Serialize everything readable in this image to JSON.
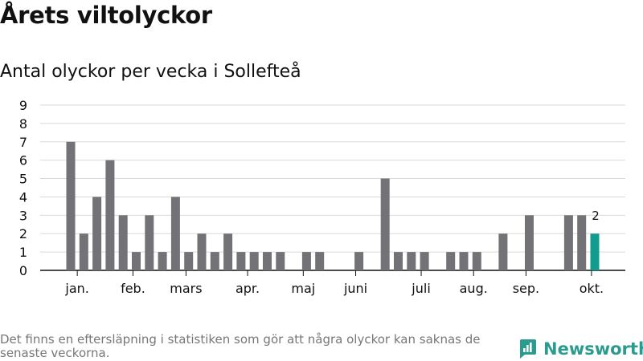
{
  "title": "Årets viltolyckor",
  "subtitle": "Antal olyckor per vecka i Sollefteå",
  "footnote": "Det finns en eftersläpning i statistiken som gör att några olyckor kan saknas de senaste veckorna.",
  "brand": {
    "name": "Newsworthy",
    "icon": "newsworthy-logo-icon",
    "color": "#2b9b8f"
  },
  "colors": {
    "bar": "#737276",
    "highlight": "#119c8f",
    "grid": "#d9d9d9",
    "axis": "#111111"
  },
  "chart_data": {
    "type": "bar",
    "title": "Årets viltolyckor",
    "subtitle": "Antal olyckor per vecka i Sollefteå",
    "x_unit": "week",
    "weeks": [
      1,
      2,
      3,
      4,
      5,
      6,
      7,
      8,
      9,
      10,
      11,
      12,
      13,
      14,
      15,
      16,
      17,
      18,
      19,
      20,
      21,
      22,
      23,
      24,
      25,
      26,
      27,
      28,
      29,
      30,
      31,
      32,
      33,
      34,
      35,
      36,
      37,
      38,
      39,
      40,
      41,
      42
    ],
    "values": [
      7,
      2,
      4,
      6,
      3,
      1,
      3,
      1,
      4,
      1,
      2,
      1,
      2,
      1,
      1,
      1,
      1,
      0,
      1,
      1,
      0,
      0,
      1,
      0,
      5,
      1,
      1,
      1,
      0,
      1,
      1,
      1,
      0,
      2,
      0,
      3,
      0,
      0,
      3,
      3,
      2,
      null
    ],
    "highlight_week": 41,
    "highlight_label": "2",
    "y_ticks": [
      0,
      1,
      2,
      3,
      4,
      5,
      6,
      7,
      8,
      9
    ],
    "ylim": [
      0,
      9
    ],
    "month_labels": [
      {
        "label": "jan.",
        "week": 1.5
      },
      {
        "label": "feb.",
        "week": 5.75
      },
      {
        "label": "mars",
        "week": 9.8
      },
      {
        "label": "apr.",
        "week": 14.5
      },
      {
        "label": "maj",
        "week": 18.75
      },
      {
        "label": "juni",
        "week": 22.75
      },
      {
        "label": "juli",
        "week": 27.75
      },
      {
        "label": "aug.",
        "week": 31.75
      },
      {
        "label": "sep.",
        "week": 35.75
      },
      {
        "label": "okt.",
        "week": 40.75
      }
    ],
    "grid": true,
    "legend": "none"
  }
}
